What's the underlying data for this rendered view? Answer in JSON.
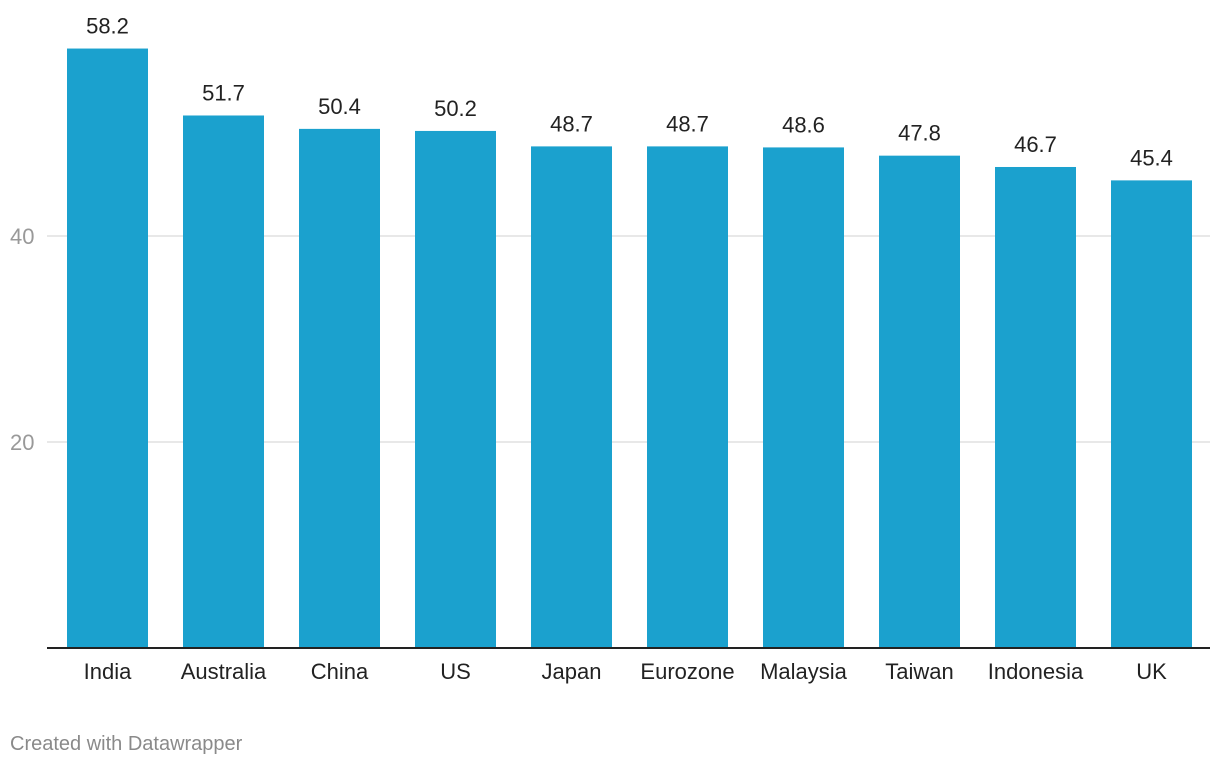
{
  "chart_data": {
    "type": "bar",
    "categories": [
      "India",
      "Australia",
      "China",
      "US",
      "Japan",
      "Eurozone",
      "Malaysia",
      "Taiwan",
      "Indonesia",
      "UK"
    ],
    "values": [
      58.2,
      51.7,
      50.4,
      50.2,
      48.7,
      48.7,
      48.6,
      47.8,
      46.7,
      45.4
    ],
    "value_labels": [
      "58.2",
      "51.7",
      "50.4",
      "50.2",
      "48.7",
      "48.7",
      "48.6",
      "47.8",
      "46.7",
      "45.4"
    ],
    "title": "",
    "xlabel": "",
    "ylabel": "",
    "ylim": [
      0,
      60
    ],
    "yticks": [
      20,
      40
    ],
    "ytick_labels": [
      "20",
      "40"
    ],
    "grid": true,
    "bar_color": "#1ba1ce",
    "label_color": "#222222",
    "tick_color": "#999999",
    "grid_color": "#e0e0e0",
    "axis_color": "#222222"
  },
  "footer": {
    "credit": "Created with Datawrapper"
  }
}
